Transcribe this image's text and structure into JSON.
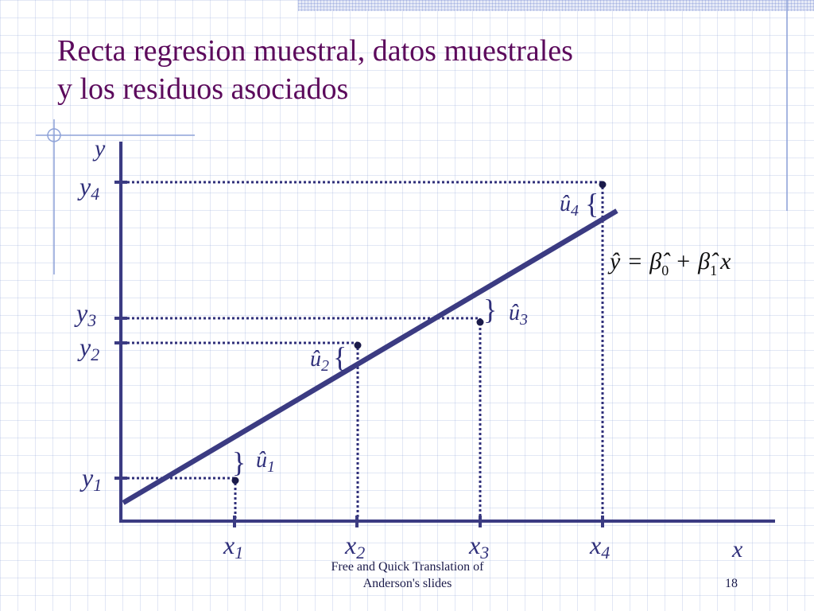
{
  "slide": {
    "title_line1": "Recta regresion muestral, datos muestrales",
    "title_line2": "y los residuos asociados",
    "footer_line1": "Free and Quick Translation of",
    "footer_line2": "Anderson's slides",
    "page_number": "18"
  },
  "colors": {
    "title": "#5c0a5c",
    "axes": "#3b3b82",
    "regression_line": "#3b3b82",
    "grid": "#96aadc"
  },
  "diagram": {
    "y_axis_label": "y",
    "x_axis_label": "x",
    "equation_symbols": [
      "ŷ",
      "β̂",
      "0",
      "β̂",
      "1",
      "x"
    ],
    "points": [
      {
        "x_label": "x",
        "x_sub": "1",
        "y_label": "y",
        "y_sub": "1",
        "resid_label": "û",
        "resid_sub": "1"
      },
      {
        "x_label": "x",
        "x_sub": "2",
        "y_label": "y",
        "y_sub": "2",
        "resid_label": "û",
        "resid_sub": "2"
      },
      {
        "x_label": "x",
        "x_sub": "3",
        "y_label": "y",
        "y_sub": "3",
        "resid_label": "û",
        "resid_sub": "3"
      },
      {
        "x_label": "x",
        "x_sub": "4",
        "y_label": "y",
        "y_sub": "4",
        "resid_label": "û",
        "resid_sub": "4"
      }
    ]
  }
}
